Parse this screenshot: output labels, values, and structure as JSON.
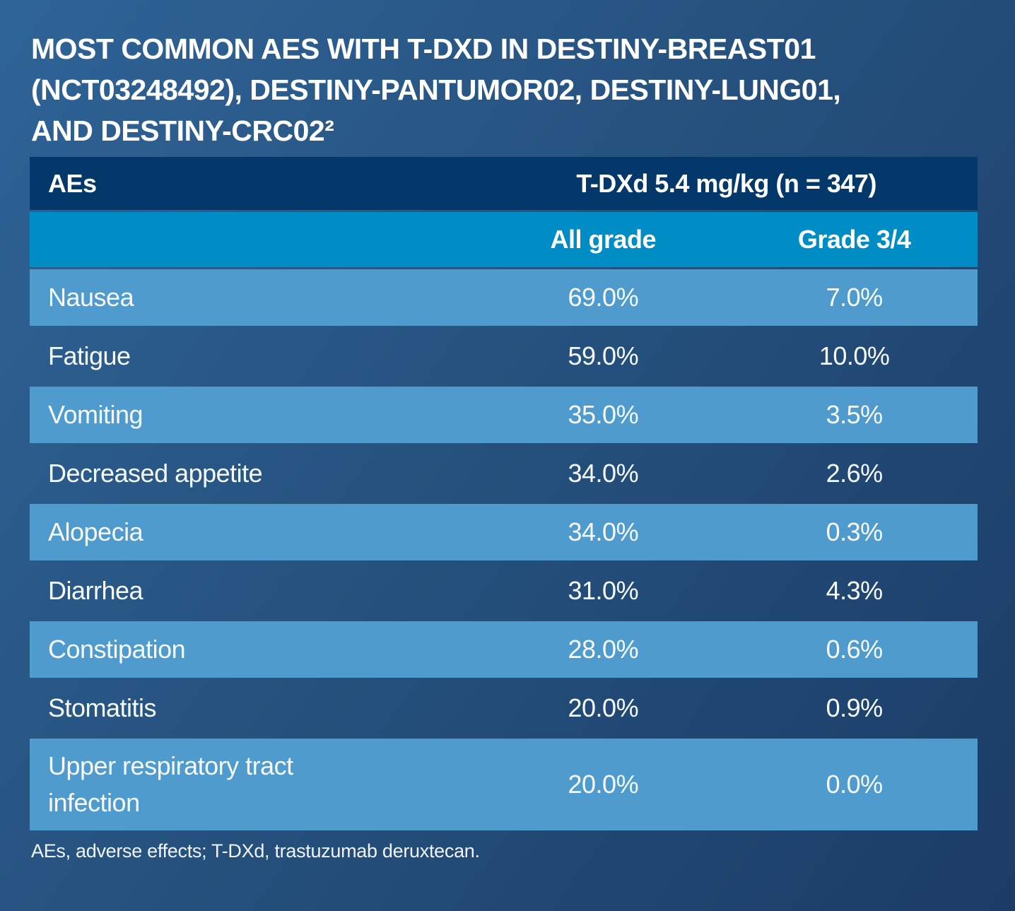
{
  "title": {
    "line1": "MOST COMMON AES WITH T-DXD IN DESTINY-BREAST01",
    "line2": "(NCT03248492), DESTINY-PANTUMOR02, DESTINY-LUNG01,",
    "line3": "AND DESTINY-CRC02²"
  },
  "table": {
    "corner_header": "AEs",
    "group_header": "T-DXd 5.4 mg/kg (n = 347)",
    "sub_headers": [
      "All grade",
      "Grade 3/4"
    ],
    "rows": [
      {
        "ae": "Nausea",
        "all_grade": "69.0%",
        "grade_3_4": "7.0%"
      },
      {
        "ae": "Fatigue",
        "all_grade": "59.0%",
        "grade_3_4": "10.0%"
      },
      {
        "ae": "Vomiting",
        "all_grade": "35.0%",
        "grade_3_4": "3.5%"
      },
      {
        "ae": "Decreased appetite",
        "all_grade": "34.0%",
        "grade_3_4": "2.6%"
      },
      {
        "ae": "Alopecia",
        "all_grade": "34.0%",
        "grade_3_4": "0.3%"
      },
      {
        "ae": "Diarrhea",
        "all_grade": "31.0%",
        "grade_3_4": "4.3%"
      },
      {
        "ae": "Constipation",
        "all_grade": "28.0%",
        "grade_3_4": "0.6%"
      },
      {
        "ae": "Stomatitis",
        "all_grade": "20.0%",
        "grade_3_4": "0.9%"
      },
      {
        "ae": "Upper respiratory tract infection",
        "all_grade": "20.0%",
        "grade_3_4": "0.0%"
      }
    ]
  },
  "footnote": "AEs, adverse effects; T-DXd, trastuzumab deruxtecan.",
  "colors": {
    "background_gradient_start": "#2f6497",
    "background_gradient_end": "#1b3c66",
    "header_navy": "#04386a",
    "header_cyan": "#008dc5",
    "row_light_blue": "#4f9bce",
    "text": "#ffffff"
  },
  "chart_data": {
    "type": "table",
    "title": "MOST COMMON AES WITH T-DXD IN DESTINY-BREAST01 (NCT03248492), DESTINY-PANTUMOR02, DESTINY-LUNG01, AND DESTINY-CRC02²",
    "column_group": "T-DXd 5.4 mg/kg (n = 347)",
    "columns": [
      "AEs",
      "All grade",
      "Grade 3/4"
    ],
    "rows": [
      [
        "Nausea",
        "69.0%",
        "7.0%"
      ],
      [
        "Fatigue",
        "59.0%",
        "10.0%"
      ],
      [
        "Vomiting",
        "35.0%",
        "3.5%"
      ],
      [
        "Decreased appetite",
        "34.0%",
        "2.6%"
      ],
      [
        "Alopecia",
        "34.0%",
        "0.3%"
      ],
      [
        "Diarrhea",
        "31.0%",
        "4.3%"
      ],
      [
        "Constipation",
        "28.0%",
        "0.6%"
      ],
      [
        "Stomatitis",
        "20.0%",
        "0.9%"
      ],
      [
        "Upper respiratory tract infection",
        "20.0%",
        "0.0%"
      ]
    ],
    "footnote": "AEs, adverse effects; T-DXd, trastuzumab deruxtecan."
  }
}
